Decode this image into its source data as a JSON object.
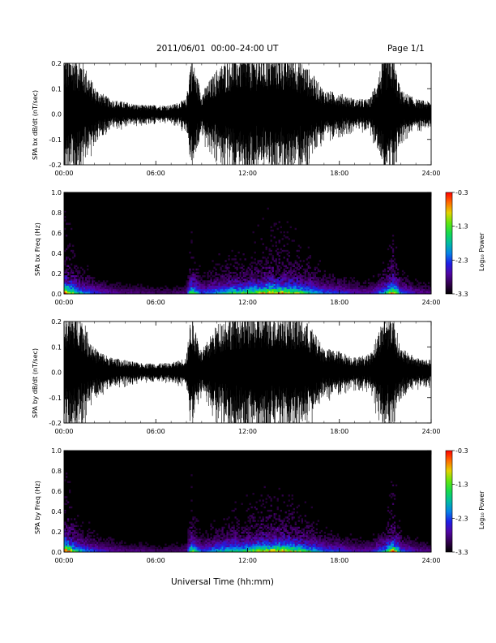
{
  "header": {
    "title": "2011/06/01  00:00–24:00 UT",
    "page": "Page 1/1"
  },
  "footer": {
    "xlabel": "Universal Time (hh:mm)"
  },
  "chart_data": [
    {
      "type": "line",
      "ylabel": "SPA bx dB/dt (nT/sec)",
      "xlabel": "",
      "xlim": [
        "00:00",
        "24:00"
      ],
      "x_ticks": [
        "00:00",
        "06:00",
        "12:00",
        "18:00",
        "24:00"
      ],
      "ylim": [
        -0.2,
        0.2
      ],
      "y_ticks": [
        "-0.2",
        "-0.1",
        "0.0",
        "0.1",
        "0.2"
      ],
      "series": [
        {
          "x_hours": [
            0,
            1,
            2,
            3,
            4,
            5,
            6,
            7,
            8,
            8.3,
            9,
            10,
            11,
            12,
            13,
            14,
            15,
            16,
            17,
            18,
            19,
            20,
            21,
            21.5,
            22,
            23,
            24
          ],
          "envelope": [
            0.2,
            0.2,
            0.09,
            0.05,
            0.04,
            0.03,
            0.03,
            0.03,
            0.05,
            0.2,
            0.07,
            0.15,
            0.2,
            0.2,
            0.2,
            0.2,
            0.2,
            0.15,
            0.08,
            0.07,
            0.05,
            0.05,
            0.2,
            0.2,
            0.08,
            0.05,
            0.04
          ]
        }
      ]
    },
    {
      "type": "heatmap",
      "ylabel": "SPA bx Freq (Hz)",
      "xlim": [
        "00:00",
        "24:00"
      ],
      "x_ticks": [
        "00:00",
        "06:00",
        "12:00",
        "18:00",
        "24:00"
      ],
      "ylim": [
        0.0,
        1.0
      ],
      "y_ticks": [
        "0.0",
        "0.2",
        "0.4",
        "0.6",
        "0.8",
        "1.0"
      ],
      "colorbar": {
        "label": "Log₁₀ Power",
        "min": -3.3,
        "max": -0.3,
        "ticks": [
          "-0.3",
          "-1.3",
          "-2.3",
          "-3.3"
        ]
      }
    },
    {
      "type": "line",
      "ylabel": "SPA by dB/dt (nT/sec)",
      "xlim": [
        "00:00",
        "24:00"
      ],
      "x_ticks": [
        "00:00",
        "06:00",
        "12:00",
        "18:00",
        "24:00"
      ],
      "ylim": [
        -0.2,
        0.2
      ],
      "y_ticks": [
        "-0.2",
        "-0.1",
        "0.0",
        "0.1",
        "0.2"
      ],
      "series": [
        {
          "x_hours": [
            0,
            1,
            2,
            3,
            4,
            5,
            6,
            7,
            8,
            8.3,
            9,
            10,
            11,
            12,
            13,
            14,
            15,
            16,
            17,
            18,
            19,
            20,
            21,
            21.5,
            22,
            23,
            24
          ],
          "envelope": [
            0.2,
            0.2,
            0.08,
            0.05,
            0.04,
            0.03,
            0.03,
            0.03,
            0.05,
            0.2,
            0.07,
            0.16,
            0.2,
            0.2,
            0.2,
            0.2,
            0.2,
            0.16,
            0.08,
            0.07,
            0.05,
            0.06,
            0.2,
            0.2,
            0.08,
            0.05,
            0.04
          ]
        }
      ]
    },
    {
      "type": "heatmap",
      "ylabel": "SPA by Freq (Hz)",
      "xlim": [
        "00:00",
        "24:00"
      ],
      "x_ticks": [
        "00:00",
        "06:00",
        "12:00",
        "18:00",
        "24:00"
      ],
      "ylim": [
        0.0,
        1.0
      ],
      "y_ticks": [
        "0.0",
        "0.2",
        "0.4",
        "0.6",
        "0.8",
        "1.0"
      ],
      "colorbar": {
        "label": "Log₁₀ Power",
        "min": -3.3,
        "max": -0.3,
        "ticks": [
          "-0.3",
          "-1.3",
          "-2.3",
          "-3.3"
        ]
      }
    }
  ]
}
